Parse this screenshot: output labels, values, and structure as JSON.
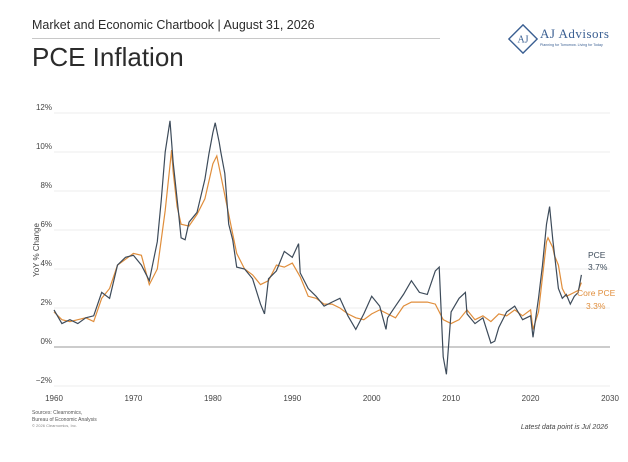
{
  "header": {
    "title": "Market and Economic Chartbook | August 31, 2026",
    "page_title": "PCE Inflation"
  },
  "logo": {
    "name": "AJ Advisors",
    "tagline": "Planning for Tomorrow. Living for Today",
    "icon": "aj-monogram-diamond-icon"
  },
  "footer": {
    "sources_1": "Sources: Clearnomics,",
    "sources_2": "Bureau of Economic Analysis",
    "copyright": "© 2026 Clearnomics, Inc.",
    "latest": "Latest data point is Jul 2026"
  },
  "colors": {
    "pce": "#3d4b5a",
    "core": "#e08e3c",
    "grid": "#d9d9d9",
    "zero": "#9a9a9a"
  },
  "chart_data": {
    "type": "line",
    "title": "PCE Inflation",
    "ylabel": "YoY % Change",
    "xlabel": "",
    "xlim": [
      1960,
      2030
    ],
    "ylim": [
      -2,
      12
    ],
    "x_ticks": [
      "1960",
      "1970",
      "1980",
      "1990",
      "2000",
      "2010",
      "2020",
      "2030"
    ],
    "y_ticks": [
      "−2%",
      "0%",
      "2%",
      "4%",
      "6%",
      "8%",
      "10%",
      "12%"
    ],
    "grid": "horizontal",
    "end_labels": {
      "pce_name": "PCE",
      "pce_value": "3.7%",
      "core_name": "Core PCE",
      "core_value": "3.3%"
    },
    "series": [
      {
        "name": "PCE",
        "points": [
          [
            1960,
            1.9
          ],
          [
            1961,
            1.2
          ],
          [
            1962,
            1.4
          ],
          [
            1963,
            1.2
          ],
          [
            1964,
            1.5
          ],
          [
            1965,
            1.6
          ],
          [
            1966,
            2.8
          ],
          [
            1967,
            2.5
          ],
          [
            1968,
            4.2
          ],
          [
            1969,
            4.6
          ],
          [
            1970,
            4.7
          ],
          [
            1971,
            4.2
          ],
          [
            1972,
            3.4
          ],
          [
            1973,
            5.4
          ],
          [
            1973.5,
            7.5
          ],
          [
            1974,
            10
          ],
          [
            1974.6,
            11.6
          ],
          [
            1975,
            9.5
          ],
          [
            1975.6,
            7.2
          ],
          [
            1976,
            5.6
          ],
          [
            1976.5,
            5.5
          ],
          [
            1977,
            6.4
          ],
          [
            1978,
            6.9
          ],
          [
            1979,
            8.6
          ],
          [
            1979.5,
            9.9
          ],
          [
            1980,
            11
          ],
          [
            1980.3,
            11.5
          ],
          [
            1980.8,
            10.5
          ],
          [
            1981,
            10
          ],
          [
            1981.5,
            8.9
          ],
          [
            1982,
            6.3
          ],
          [
            1982.5,
            5.5
          ],
          [
            1983,
            4.1
          ],
          [
            1984,
            4
          ],
          [
            1985,
            3.5
          ],
          [
            1986,
            2.2
          ],
          [
            1986.5,
            1.7
          ],
          [
            1987,
            3.5
          ],
          [
            1988,
            3.9
          ],
          [
            1989,
            4.9
          ],
          [
            1990,
            4.6
          ],
          [
            1990.8,
            5.3
          ],
          [
            1991,
            3.8
          ],
          [
            1992,
            3
          ],
          [
            1993,
            2.6
          ],
          [
            1994,
            2.1
          ],
          [
            1995,
            2.3
          ],
          [
            1996,
            2.5
          ],
          [
            1997,
            1.6
          ],
          [
            1998,
            0.9
          ],
          [
            1999,
            1.7
          ],
          [
            2000,
            2.6
          ],
          [
            2001,
            2.1
          ],
          [
            2001.8,
            0.9
          ],
          [
            2002,
            1.5
          ],
          [
            2003,
            2.1
          ],
          [
            2004,
            2.7
          ],
          [
            2005,
            3.4
          ],
          [
            2006,
            2.8
          ],
          [
            2007,
            2.7
          ],
          [
            2008,
            3.9
          ],
          [
            2008.5,
            4.1
          ],
          [
            2009,
            -0.5
          ],
          [
            2009.4,
            -1.4
          ],
          [
            2010,
            1.8
          ],
          [
            2011,
            2.5
          ],
          [
            2011.8,
            2.8
          ],
          [
            2012,
            1.7
          ],
          [
            2013,
            1.2
          ],
          [
            2014,
            1.5
          ],
          [
            2015,
            0.2
          ],
          [
            2015.5,
            0.3
          ],
          [
            2016,
            1
          ],
          [
            2017,
            1.8
          ],
          [
            2018,
            2.1
          ],
          [
            2019,
            1.4
          ],
          [
            2020,
            1.6
          ],
          [
            2020.3,
            0.5
          ],
          [
            2021,
            2.5
          ],
          [
            2021.5,
            4.2
          ],
          [
            2022,
            6.3
          ],
          [
            2022.4,
            7.2
          ],
          [
            2022.8,
            5.5
          ],
          [
            2023,
            4.8
          ],
          [
            2023.5,
            3
          ],
          [
            2024,
            2.5
          ],
          [
            2024.5,
            2.7
          ],
          [
            2025,
            2.2
          ],
          [
            2025.5,
            2.6
          ],
          [
            2026,
            2.8
          ],
          [
            2026.4,
            3.7
          ]
        ]
      },
      {
        "name": "Core PCE",
        "points": [
          [
            1960,
            1.8
          ],
          [
            1961,
            1.4
          ],
          [
            1962,
            1.3
          ],
          [
            1963,
            1.4
          ],
          [
            1964,
            1.5
          ],
          [
            1965,
            1.3
          ],
          [
            1966,
            2.5
          ],
          [
            1967,
            3
          ],
          [
            1968,
            4.2
          ],
          [
            1969,
            4.5
          ],
          [
            1970,
            4.8
          ],
          [
            1971,
            4.7
          ],
          [
            1972,
            3.2
          ],
          [
            1973,
            4
          ],
          [
            1974,
            7
          ],
          [
            1974.8,
            10.1
          ],
          [
            1975,
            9
          ],
          [
            1975.5,
            7.2
          ],
          [
            1976,
            6.3
          ],
          [
            1977,
            6.2
          ],
          [
            1978,
            6.8
          ],
          [
            1979,
            7.6
          ],
          [
            1980,
            9.4
          ],
          [
            1980.5,
            9.8
          ],
          [
            1981,
            8.8
          ],
          [
            1982,
            6.8
          ],
          [
            1983,
            4.8
          ],
          [
            1984,
            4
          ],
          [
            1985,
            3.7
          ],
          [
            1986,
            3.2
          ],
          [
            1987,
            3.4
          ],
          [
            1988,
            4.2
          ],
          [
            1989,
            4.1
          ],
          [
            1990,
            4.3
          ],
          [
            1991,
            3.6
          ],
          [
            1992,
            2.6
          ],
          [
            1993,
            2.5
          ],
          [
            1994,
            2.2
          ],
          [
            1995,
            2.2
          ],
          [
            1996,
            2
          ],
          [
            1997,
            1.7
          ],
          [
            1998,
            1.5
          ],
          [
            1999,
            1.4
          ],
          [
            2000,
            1.7
          ],
          [
            2001,
            1.9
          ],
          [
            2002,
            1.7
          ],
          [
            2003,
            1.5
          ],
          [
            2004,
            2.1
          ],
          [
            2005,
            2.3
          ],
          [
            2006,
            2.3
          ],
          [
            2007,
            2.3
          ],
          [
            2008,
            2.2
          ],
          [
            2009,
            1.4
          ],
          [
            2010,
            1.2
          ],
          [
            2011,
            1.4
          ],
          [
            2012,
            1.9
          ],
          [
            2013,
            1.4
          ],
          [
            2014,
            1.6
          ],
          [
            2015,
            1.3
          ],
          [
            2016,
            1.7
          ],
          [
            2017,
            1.6
          ],
          [
            2018,
            1.9
          ],
          [
            2019,
            1.6
          ],
          [
            2020,
            1.9
          ],
          [
            2020.3,
            0.9
          ],
          [
            2021,
            1.8
          ],
          [
            2021.5,
            3.6
          ],
          [
            2022,
            5.4
          ],
          [
            2022.2,
            5.6
          ],
          [
            2022.8,
            5.1
          ],
          [
            2023,
            4.7
          ],
          [
            2023.5,
            4.2
          ],
          [
            2024,
            3
          ],
          [
            2024.5,
            2.6
          ],
          [
            2025,
            2.7
          ],
          [
            2025.5,
            2.8
          ],
          [
            2026,
            2.9
          ],
          [
            2026.4,
            3.3
          ]
        ]
      }
    ]
  }
}
